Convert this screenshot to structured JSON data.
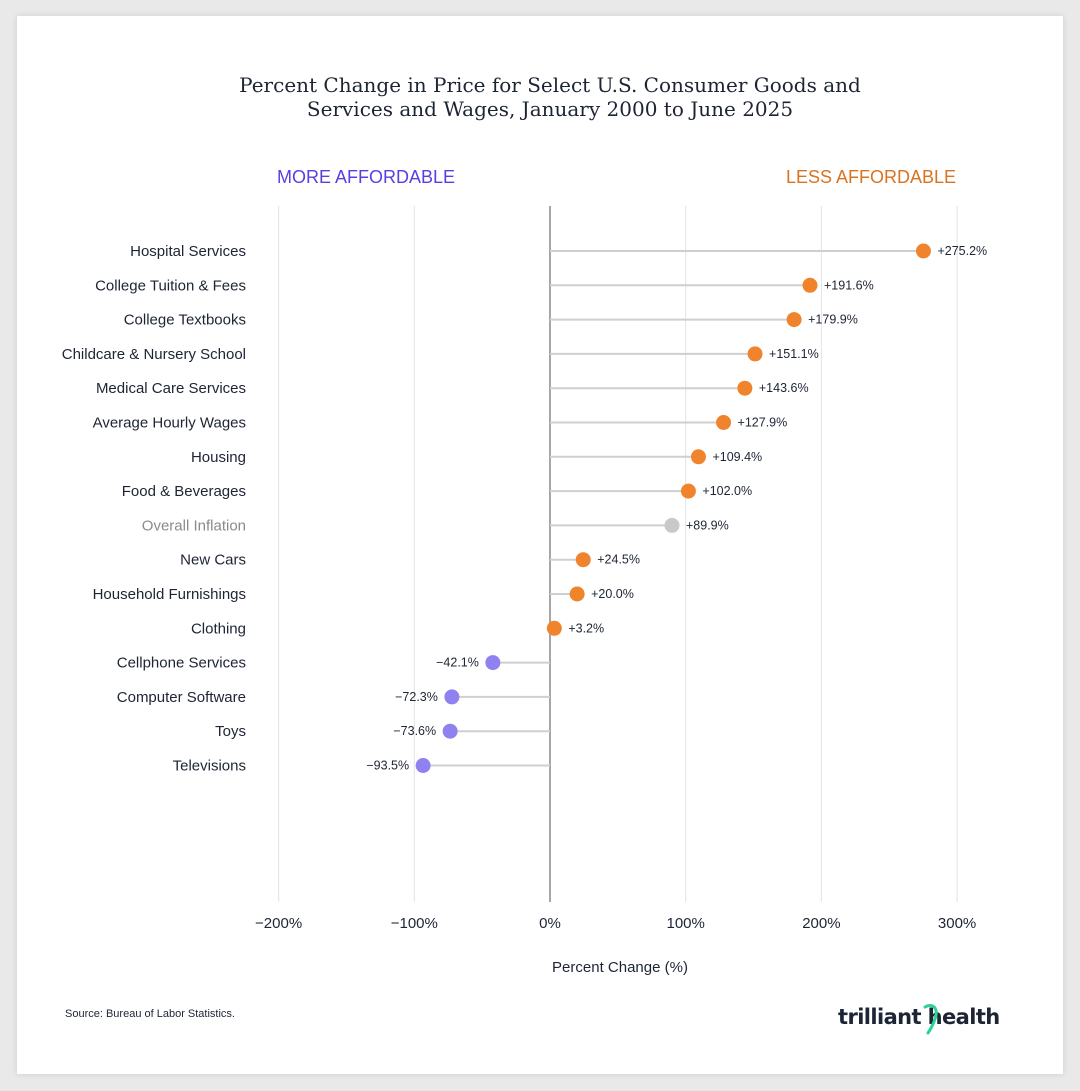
{
  "title_lines": [
    "Percent Change in Price for Select U.S. Consumer Goods and",
    "Services and Wages, January 2000 to June 2025"
  ],
  "header_left": "MORE AFFORDABLE",
  "header_right": "LESS AFFORDABLE",
  "source": "Source: Bureau of Labor Statistics.",
  "logo_text": "trilliant health",
  "colors": {
    "increase": "#f0842c",
    "decrease": "#8f82f0",
    "overall": "#c9c9c9",
    "left_header": "#5a3fe0",
    "right_header": "#d9731f",
    "logo_accent": "#2ad29a"
  },
  "chart_data": {
    "type": "lollipop",
    "xlabel": "Percent Change (%)",
    "xlim": [
      -200,
      300
    ],
    "xticks": [
      -200,
      -100,
      0,
      100,
      200,
      300
    ],
    "xtick_labels": [
      "−200%",
      "−100%",
      "0%",
      "100%",
      "200%",
      "300%"
    ],
    "grid": true,
    "items": [
      {
        "label": "Hospital Services",
        "value": 275.2,
        "text": "+275.2%",
        "kind": "increase"
      },
      {
        "label": "College Tuition & Fees",
        "value": 191.6,
        "text": "+191.6%",
        "kind": "increase"
      },
      {
        "label": "College Textbooks",
        "value": 179.9,
        "text": "+179.9%",
        "kind": "increase"
      },
      {
        "label": "Childcare & Nursery School",
        "value": 151.1,
        "text": "+151.1%",
        "kind": "increase"
      },
      {
        "label": "Medical Care Services",
        "value": 143.6,
        "text": "+143.6%",
        "kind": "increase"
      },
      {
        "label": "Average Hourly Wages",
        "value": 127.9,
        "text": "+127.9%",
        "kind": "increase"
      },
      {
        "label": "Housing",
        "value": 109.4,
        "text": "+109.4%",
        "kind": "increase"
      },
      {
        "label": "Food & Beverages",
        "value": 102.0,
        "text": "+102.0%",
        "kind": "increase"
      },
      {
        "label": "Overall Inflation",
        "value": 89.9,
        "text": "+89.9%",
        "kind": "overall"
      },
      {
        "label": "New Cars",
        "value": 24.5,
        "text": "+24.5%",
        "kind": "increase"
      },
      {
        "label": "Household Furnishings",
        "value": 20.0,
        "text": "+20.0%",
        "kind": "increase"
      },
      {
        "label": "Clothing",
        "value": 3.2,
        "text": "+3.2%",
        "kind": "increase"
      },
      {
        "label": "Cellphone Services",
        "value": -42.1,
        "text": "−42.1%",
        "kind": "decrease"
      },
      {
        "label": "Computer Software",
        "value": -72.3,
        "text": "−72.3%",
        "kind": "decrease"
      },
      {
        "label": "Toys",
        "value": -73.6,
        "text": "−73.6%",
        "kind": "decrease"
      },
      {
        "label": "Televisions",
        "value": -93.5,
        "text": "−93.5%",
        "kind": "decrease"
      }
    ]
  }
}
